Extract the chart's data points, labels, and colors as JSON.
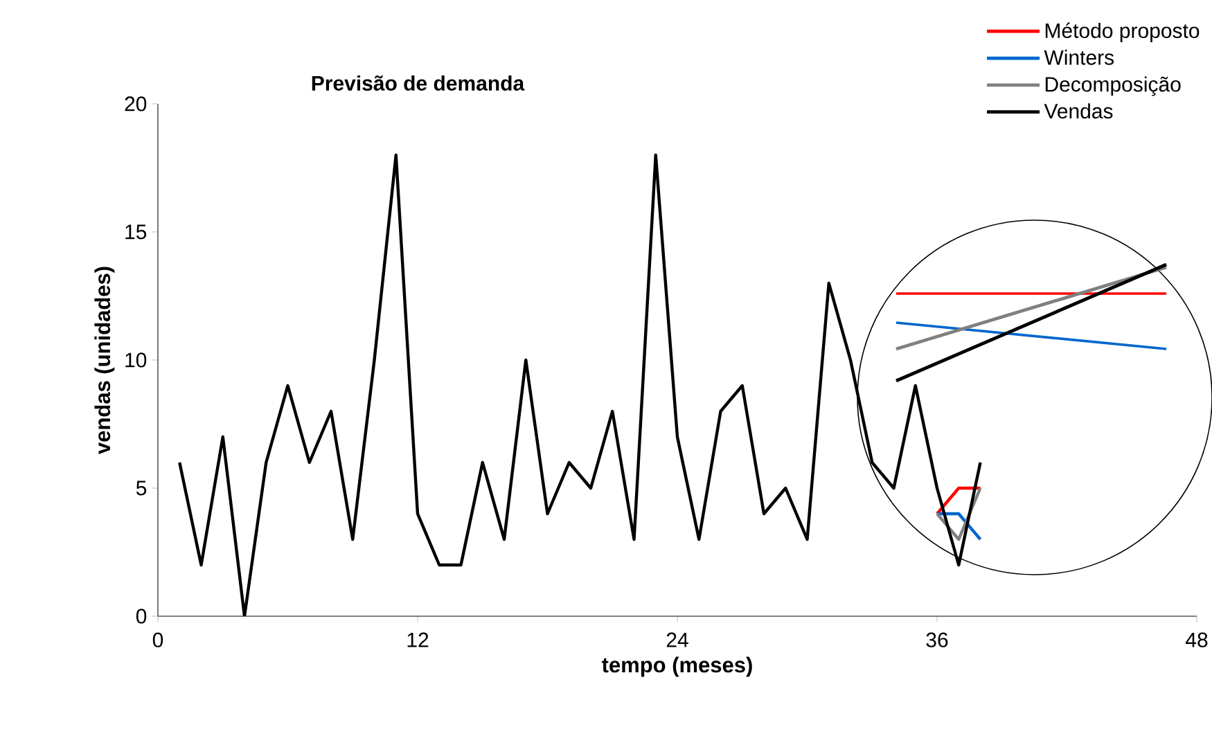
{
  "chart_data": {
    "type": "line",
    "title": "Previsão de demanda",
    "xlabel": "tempo (meses)",
    "ylabel": "vendas (unidades)",
    "xlim": [
      0,
      48
    ],
    "ylim": [
      0,
      20
    ],
    "xticks": [
      0,
      12,
      24,
      36,
      48
    ],
    "yticks": [
      0,
      5,
      10,
      15,
      20
    ],
    "grid": false,
    "legend": "top right",
    "marker": "none",
    "line_style": "solid",
    "series": [
      {
        "name": "Método proposto",
        "color": "#ff0000",
        "x": [
          36,
          37,
          38
        ],
        "values": [
          4,
          5,
          5
        ]
      },
      {
        "name": "Winters",
        "color": "#0066cc",
        "x": [
          36,
          37,
          38
        ],
        "values": [
          4,
          4,
          3
        ]
      },
      {
        "name": "Decomposição",
        "color": "#808080",
        "x": [
          36,
          37,
          38
        ],
        "values": [
          4,
          3,
          5
        ]
      },
      {
        "name": "Vendas",
        "color": "#000000",
        "x": [
          1,
          2,
          3,
          4,
          5,
          6,
          7,
          8,
          9,
          10,
          11,
          12,
          13,
          14,
          15,
          16,
          17,
          18,
          19,
          20,
          21,
          22,
          23,
          24,
          25,
          26,
          27,
          28,
          29,
          30,
          31,
          32,
          33,
          34,
          35,
          36,
          37,
          38
        ],
        "values": [
          6,
          2,
          7,
          0,
          6,
          9,
          6,
          8,
          3,
          10,
          18,
          4,
          2,
          2,
          6,
          3,
          10,
          4,
          6,
          5,
          8,
          3,
          18,
          7,
          3,
          8,
          9,
          4,
          5,
          3,
          13,
          10,
          6,
          5,
          9,
          5,
          2,
          6
        ]
      }
    ]
  }
}
